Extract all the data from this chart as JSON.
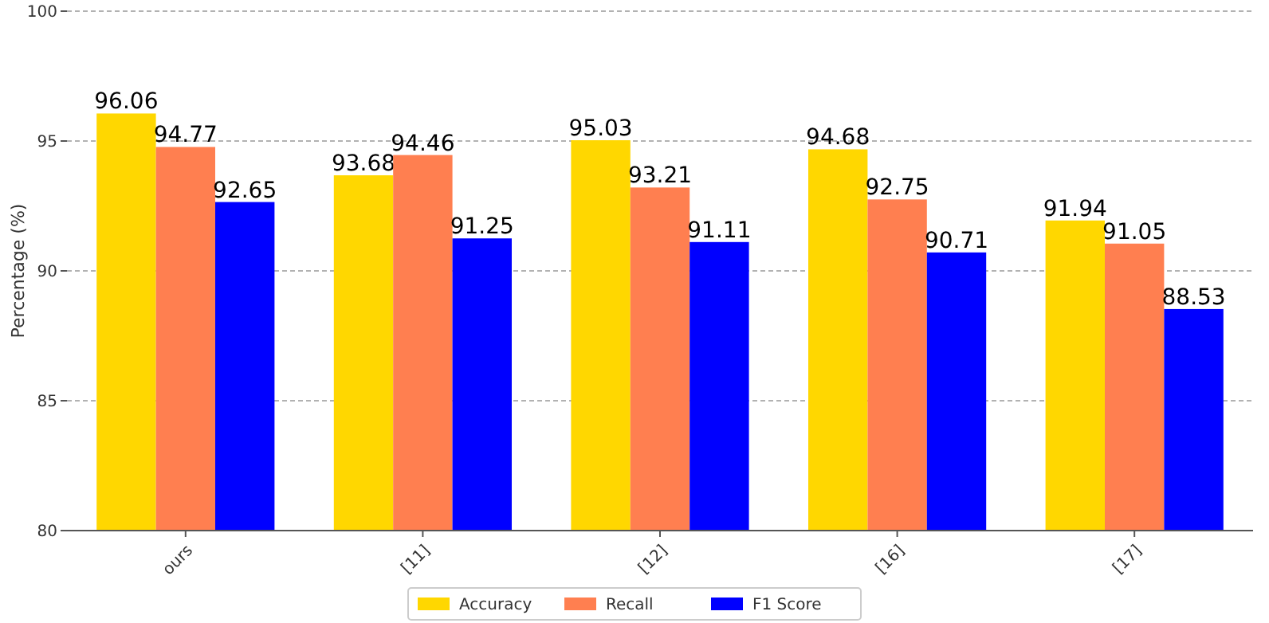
{
  "chart_data": {
    "type": "bar",
    "ylabel": "Percentage (%)",
    "categories": [
      "ours",
      "[11]",
      "[12]",
      "[16]",
      "[17]"
    ],
    "series": [
      {
        "name": "Accuracy",
        "color": "#ffd700",
        "values": [
          96.06,
          93.68,
          95.03,
          94.68,
          91.94
        ]
      },
      {
        "name": "Recall",
        "color": "#ff7f50",
        "values": [
          94.77,
          94.46,
          93.21,
          92.75,
          91.05
        ]
      },
      {
        "name": "F1 Score",
        "color": "#0000ff",
        "values": [
          92.65,
          91.25,
          91.11,
          90.71,
          88.53
        ]
      }
    ],
    "ylim": [
      80,
      100
    ],
    "yticks": [
      80,
      85,
      90,
      95,
      100
    ],
    "grid": "y",
    "legend": "bottom",
    "data_labels": true
  }
}
